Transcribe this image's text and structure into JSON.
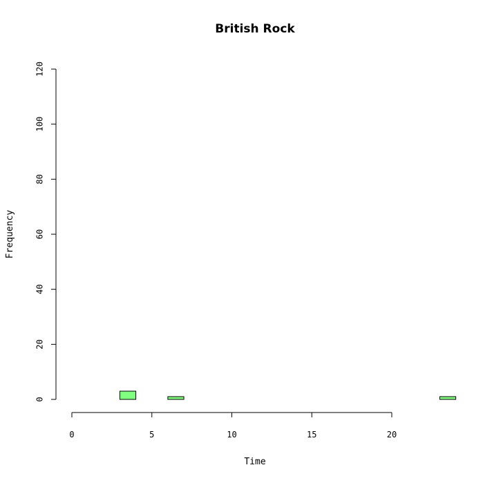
{
  "chart_data": {
    "type": "bar",
    "subtype": "histogram",
    "title": "British Rock",
    "xlabel": "Time",
    "ylabel": "Frequency",
    "xlim": [
      0,
      24
    ],
    "ylim": [
      0,
      120
    ],
    "x_ticks": [
      0,
      5,
      10,
      15,
      20
    ],
    "y_ticks": [
      0,
      20,
      40,
      60,
      80,
      100,
      120
    ],
    "bin_width": 1,
    "bins": [
      {
        "x0": 0,
        "x1": 1,
        "count": 0
      },
      {
        "x0": 1,
        "x1": 2,
        "count": 0
      },
      {
        "x0": 2,
        "x1": 3,
        "count": 0
      },
      {
        "x0": 3,
        "x1": 4,
        "count": 3
      },
      {
        "x0": 4,
        "x1": 5,
        "count": 0
      },
      {
        "x0": 5,
        "x1": 6,
        "count": 0
      },
      {
        "x0": 6,
        "x1": 7,
        "count": 1
      },
      {
        "x0": 7,
        "x1": 8,
        "count": 0
      },
      {
        "x0": 8,
        "x1": 9,
        "count": 0
      },
      {
        "x0": 9,
        "x1": 10,
        "count": 0
      },
      {
        "x0": 10,
        "x1": 11,
        "count": 0
      },
      {
        "x0": 11,
        "x1": 12,
        "count": 0
      },
      {
        "x0": 12,
        "x1": 13,
        "count": 0
      },
      {
        "x0": 13,
        "x1": 14,
        "count": 0
      },
      {
        "x0": 14,
        "x1": 15,
        "count": 0
      },
      {
        "x0": 15,
        "x1": 16,
        "count": 0
      },
      {
        "x0": 16,
        "x1": 17,
        "count": 0
      },
      {
        "x0": 17,
        "x1": 18,
        "count": 0
      },
      {
        "x0": 18,
        "x1": 19,
        "count": 0
      },
      {
        "x0": 19,
        "x1": 20,
        "count": 0
      },
      {
        "x0": 20,
        "x1": 21,
        "count": 0
      },
      {
        "x0": 21,
        "x1": 22,
        "count": 0
      },
      {
        "x0": 22,
        "x1": 23,
        "count": 0
      },
      {
        "x0": 23,
        "x1": 24,
        "count": 1
      }
    ],
    "bar_color": "#80ff80",
    "border_color": "#000000",
    "grid": false,
    "legend": "none"
  }
}
